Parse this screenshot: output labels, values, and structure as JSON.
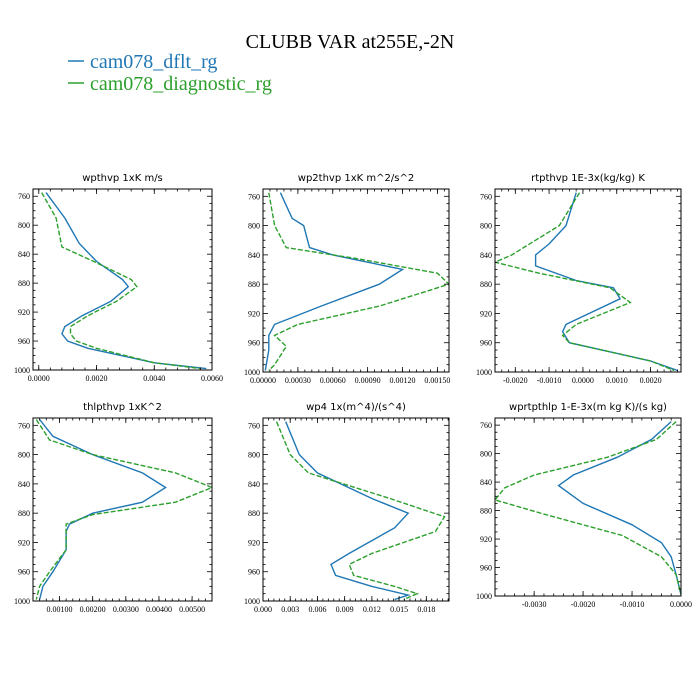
{
  "title": "CLUBB VAR at255E,-2N",
  "legend": [
    {
      "label": "cam078_dflt_rg",
      "color": "#1f77b4",
      "dash": "solid"
    },
    {
      "label": "cam078_diagnostic_rg",
      "color": "#2ca02c",
      "dash": "dashed"
    }
  ],
  "chart_data": [
    {
      "type": "line",
      "title": "wpthvp  1xK m/s",
      "xlim": [
        -0.0002,
        0.006
      ],
      "ylim": [
        1000,
        750
      ],
      "xticks": [
        0.0,
        0.002,
        0.004,
        0.006
      ],
      "xtick_labels": [
        "0.0000",
        "0.0020",
        "0.0040",
        "0.0060"
      ],
      "yticks": [
        760,
        800,
        840,
        880,
        920,
        960,
        1000
      ],
      "series": [
        {
          "name": "cam078_dflt_rg",
          "points": [
            [
              0.00025,
              755
            ],
            [
              0.0009,
              790
            ],
            [
              0.0014,
              825
            ],
            [
              0.002,
              850
            ],
            [
              0.0029,
              875
            ],
            [
              0.0031,
              885
            ],
            [
              0.0025,
              905
            ],
            [
              0.0015,
              925
            ],
            [
              0.0009,
              940
            ],
            [
              0.0008,
              950
            ],
            [
              0.001,
              960
            ],
            [
              0.0017,
              970
            ],
            [
              0.004,
              990
            ],
            [
              0.0058,
              998
            ]
          ]
        },
        {
          "name": "cam078_diagnostic_rg",
          "points": [
            [
              0.0001,
              755
            ],
            [
              0.0006,
              790
            ],
            [
              0.0008,
              830
            ],
            [
              0.0019,
              850
            ],
            [
              0.0032,
              875
            ],
            [
              0.0034,
              885
            ],
            [
              0.0027,
              905
            ],
            [
              0.0017,
              925
            ],
            [
              0.0011,
              940
            ],
            [
              0.0011,
              950
            ],
            [
              0.0013,
              960
            ],
            [
              0.002,
              970
            ],
            [
              0.004,
              990
            ],
            [
              0.0056,
              998
            ]
          ]
        }
      ]
    },
    {
      "type": "line",
      "title": "wp2thvp  1xK m^2/s^2",
      "xlim": [
        0.0,
        0.0016
      ],
      "ylim": [
        1000,
        750
      ],
      "xticks": [
        0.0,
        0.0003,
        0.0006,
        0.0009,
        0.0012,
        0.0015
      ],
      "xtick_labels": [
        "0.00000",
        "0.00030",
        "0.00060",
        "0.00090",
        "0.00120",
        "0.00150"
      ],
      "yticks": [
        760,
        800,
        840,
        880,
        920,
        960,
        1000
      ],
      "series": [
        {
          "name": "cam078_dflt_rg",
          "points": [
            [
              0.00015,
              755
            ],
            [
              0.00025,
              790
            ],
            [
              0.00035,
              800
            ],
            [
              0.0004,
              830
            ],
            [
              0.0006,
              840
            ],
            [
              0.0012,
              860
            ],
            [
              0.001,
              880
            ],
            [
              0.0005,
              910
            ],
            [
              0.0001,
              935
            ],
            [
              5e-05,
              950
            ],
            [
              5e-05,
              970
            ],
            [
              2e-05,
              998
            ]
          ]
        },
        {
          "name": "cam078_diagnostic_rg",
          "points": [
            [
              5e-05,
              755
            ],
            [
              0.0001,
              800
            ],
            [
              0.0002,
              830
            ],
            [
              0.0008,
              845
            ],
            [
              0.0015,
              865
            ],
            [
              0.0016,
              880
            ],
            [
              0.001,
              910
            ],
            [
              0.0003,
              935
            ],
            [
              0.0001,
              950
            ],
            [
              0.0002,
              965
            ],
            [
              0.0001,
              990
            ],
            [
              5e-05,
              998
            ]
          ]
        }
      ]
    },
    {
      "type": "line",
      "title": "rtpthvp  1E-3x(kg/kg) K",
      "xlim": [
        -0.0026,
        0.0029
      ],
      "ylim": [
        1000,
        750
      ],
      "xticks": [
        -0.002,
        -0.001,
        0.0,
        0.001,
        0.002
      ],
      "xtick_labels": [
        "-0.0020",
        "-0.0010",
        "0.0000",
        "0.0010",
        "0.0020"
      ],
      "yticks": [
        760,
        800,
        840,
        880,
        920,
        960,
        1000
      ],
      "series": [
        {
          "name": "cam078_dflt_rg",
          "points": [
            [
              -0.0002,
              755
            ],
            [
              -0.0005,
              800
            ],
            [
              -0.001,
              825
            ],
            [
              -0.0014,
              840
            ],
            [
              -0.0014,
              855
            ],
            [
              -0.0002,
              875
            ],
            [
              0.0009,
              885
            ],
            [
              0.0011,
              900
            ],
            [
              -0.0005,
              935
            ],
            [
              -0.0006,
              945
            ],
            [
              -0.0004,
              960
            ],
            [
              0.002,
              985
            ],
            [
              0.0028,
              998
            ]
          ]
        },
        {
          "name": "cam078_diagnostic_rg",
          "points": [
            [
              -0.0001,
              755
            ],
            [
              -0.0007,
              800
            ],
            [
              -0.0014,
              820
            ],
            [
              -0.0021,
              840
            ],
            [
              -0.0026,
              850
            ],
            [
              -0.0013,
              865
            ],
            [
              0.0008,
              885
            ],
            [
              0.0014,
              905
            ],
            [
              -0.0002,
              935
            ],
            [
              -0.0006,
              950
            ],
            [
              -0.0004,
              960
            ],
            [
              0.002,
              985
            ],
            [
              0.0027,
              998
            ]
          ]
        }
      ]
    },
    {
      "type": "line",
      "title": "thlpthvp  1xK^2",
      "xlim": [
        0.0002,
        0.0056
      ],
      "ylim": [
        1000,
        750
      ],
      "xticks": [
        0.001,
        0.002,
        0.003,
        0.004,
        0.005
      ],
      "xtick_labels": [
        "0.00100",
        "0.00200",
        "0.00300",
        "0.00400",
        "0.00500"
      ],
      "yticks": [
        760,
        800,
        840,
        880,
        920,
        960,
        1000
      ],
      "series": [
        {
          "name": "cam078_dflt_rg",
          "points": [
            [
              0.0004,
              752
            ],
            [
              0.0008,
              775
            ],
            [
              0.002,
              800
            ],
            [
              0.0035,
              825
            ],
            [
              0.0042,
              845
            ],
            [
              0.0035,
              865
            ],
            [
              0.002,
              880
            ],
            [
              0.0013,
              895
            ],
            [
              0.0012,
              905
            ],
            [
              0.0012,
              930
            ],
            [
              0.0008,
              960
            ],
            [
              0.0005,
              980
            ],
            [
              0.0004,
              998
            ]
          ]
        },
        {
          "name": "cam078_diagnostic_rg",
          "points": [
            [
              0.0003,
              752
            ],
            [
              0.0007,
              780
            ],
            [
              0.002,
              800
            ],
            [
              0.0045,
              825
            ],
            [
              0.0056,
              845
            ],
            [
              0.0045,
              865
            ],
            [
              0.002,
              882
            ],
            [
              0.0012,
              895
            ],
            [
              0.0012,
              905
            ],
            [
              0.0012,
              930
            ],
            [
              0.0007,
              960
            ],
            [
              0.0004,
              980
            ],
            [
              0.0003,
              998
            ]
          ]
        }
      ]
    },
    {
      "type": "line",
      "title": "wp4  1x(m^4)/(s^4)",
      "xlim": [
        0.0,
        0.0205
      ],
      "ylim": [
        1000,
        750
      ],
      "xticks": [
        0.0,
        0.003,
        0.006,
        0.009,
        0.012,
        0.015,
        0.018
      ],
      "xtick_labels": [
        "0.000",
        "0.003",
        "0.006",
        "0.009",
        "0.012",
        "0.015",
        "0.018"
      ],
      "yticks": [
        760,
        800,
        840,
        880,
        920,
        960,
        1000
      ],
      "series": [
        {
          "name": "cam078_dflt_rg",
          "points": [
            [
              0.0025,
              755
            ],
            [
              0.004,
              800
            ],
            [
              0.006,
              825
            ],
            [
              0.012,
              860
            ],
            [
              0.016,
              880
            ],
            [
              0.0145,
              900
            ],
            [
              0.0095,
              935
            ],
            [
              0.0075,
              950
            ],
            [
              0.008,
              965
            ],
            [
              0.012,
              980
            ],
            [
              0.016,
              992
            ],
            [
              0.0145,
              998
            ]
          ]
        },
        {
          "name": "cam078_diagnostic_rg",
          "points": [
            [
              0.0015,
              755
            ],
            [
              0.003,
              800
            ],
            [
              0.005,
              825
            ],
            [
              0.014,
              860
            ],
            [
              0.02,
              885
            ],
            [
              0.019,
              905
            ],
            [
              0.012,
              935
            ],
            [
              0.0095,
              950
            ],
            [
              0.01,
              965
            ],
            [
              0.0145,
              980
            ],
            [
              0.017,
              990
            ],
            [
              0.0155,
              998
            ]
          ]
        }
      ]
    },
    {
      "type": "line",
      "title": "wprtpthlp  1-E-3x(m kg K)/(s kg)",
      "xlim": [
        -0.0038,
        0.0
      ],
      "ylim": [
        1000,
        750
      ],
      "xticks": [
        -0.003,
        -0.002,
        -0.001,
        0.0
      ],
      "xtick_labels": [
        "-0.0030",
        "-0.0020",
        "-0.0010",
        "0.0000"
      ],
      "yticks": [
        760,
        800,
        840,
        880,
        920,
        960,
        1000
      ],
      "series": [
        {
          "name": "cam078_dflt_rg",
          "points": [
            [
              -0.0002,
              755
            ],
            [
              -0.0006,
              780
            ],
            [
              -0.0013,
              805
            ],
            [
              -0.0022,
              830
            ],
            [
              -0.0025,
              845
            ],
            [
              -0.002,
              870
            ],
            [
              -0.001,
              900
            ],
            [
              -0.0004,
              925
            ],
            [
              -0.0002,
              945
            ],
            [
              -0.0001,
              970
            ],
            [
              0.0,
              998
            ]
          ]
        },
        {
          "name": "cam078_diagnostic_rg",
          "points": [
            [
              -0.0001,
              755
            ],
            [
              -0.0005,
              780
            ],
            [
              -0.0015,
              805
            ],
            [
              -0.003,
              830
            ],
            [
              -0.0036,
              848
            ],
            [
              -0.0038,
              865
            ],
            [
              -0.0028,
              885
            ],
            [
              -0.0012,
              915
            ],
            [
              -0.0004,
              945
            ],
            [
              -0.0001,
              970
            ],
            [
              0.0,
              998
            ]
          ]
        }
      ]
    }
  ]
}
